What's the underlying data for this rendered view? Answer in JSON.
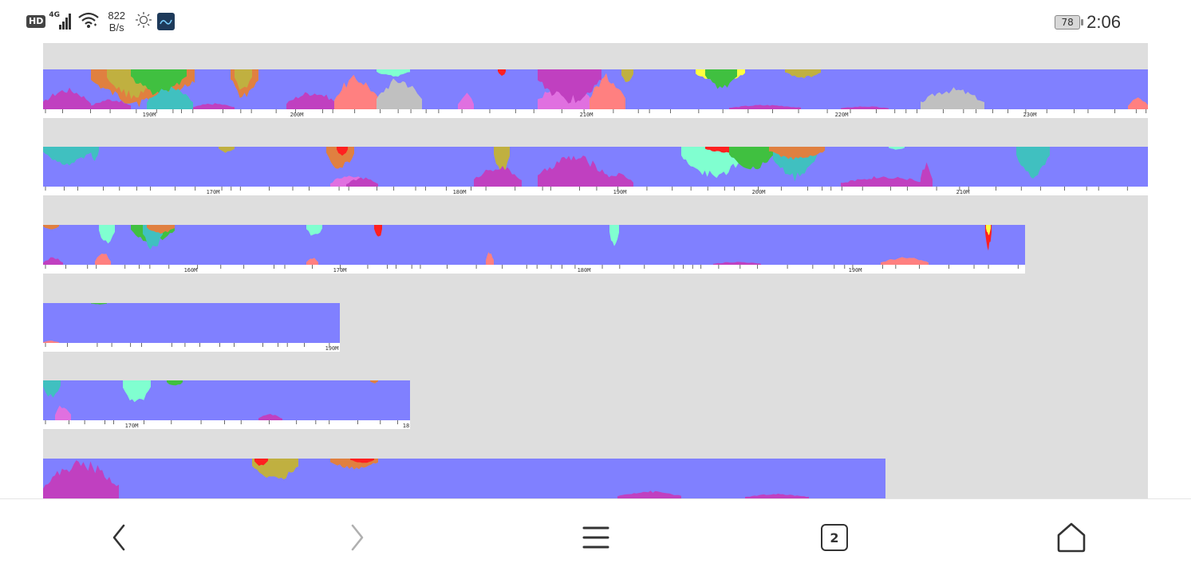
{
  "status_bar": {
    "network_badge": "HD",
    "network_type": "4G",
    "speed_value": "822",
    "speed_unit": "B/s",
    "battery_level": "78",
    "time": "2:06",
    "icons": [
      "hd-icon",
      "signal-icon",
      "wifi-icon",
      "brightness-icon",
      "app-notification-icon",
      "battery-icon"
    ]
  },
  "chromosomes": [
    {
      "ticks": [
        {
          "label": "190M"
        },
        {
          "label": "200M"
        },
        {
          "label": "210M"
        },
        {
          "label": "220M"
        },
        {
          "label": "230M"
        }
      ]
    },
    {
      "ticks": [
        {
          "label": "170M"
        },
        {
          "label": "180M"
        },
        {
          "label": "190M"
        },
        {
          "label": "200M"
        },
        {
          "label": "210M"
        }
      ]
    },
    {
      "ticks": [
        {
          "label": "160M"
        },
        {
          "label": "170M"
        },
        {
          "label": "180M"
        },
        {
          "label": "190M"
        }
      ]
    },
    {
      "ticks": [
        {
          "label": "190M"
        }
      ]
    },
    {
      "ticks": [
        {
          "label": "170M"
        },
        {
          "label": "18"
        }
      ]
    },
    {
      "ticks": []
    }
  ],
  "colors": {
    "background": "#dedede",
    "baseline": "#8080ff",
    "magenta": "#c040c0",
    "orange": "#e08040",
    "olive": "#c0b040",
    "green": "#40c040",
    "teal": "#40c0c0",
    "aqua": "#80ffd0",
    "red": "#ff2020",
    "yellow": "#ffff40",
    "salmon": "#ff8080",
    "gray": "#c0c0c0",
    "pink": "#e070e0"
  },
  "nav": {
    "tab_count": "2",
    "icons": [
      "back-icon",
      "forward-icon",
      "menu-icon",
      "tabs-icon",
      "home-icon"
    ]
  }
}
